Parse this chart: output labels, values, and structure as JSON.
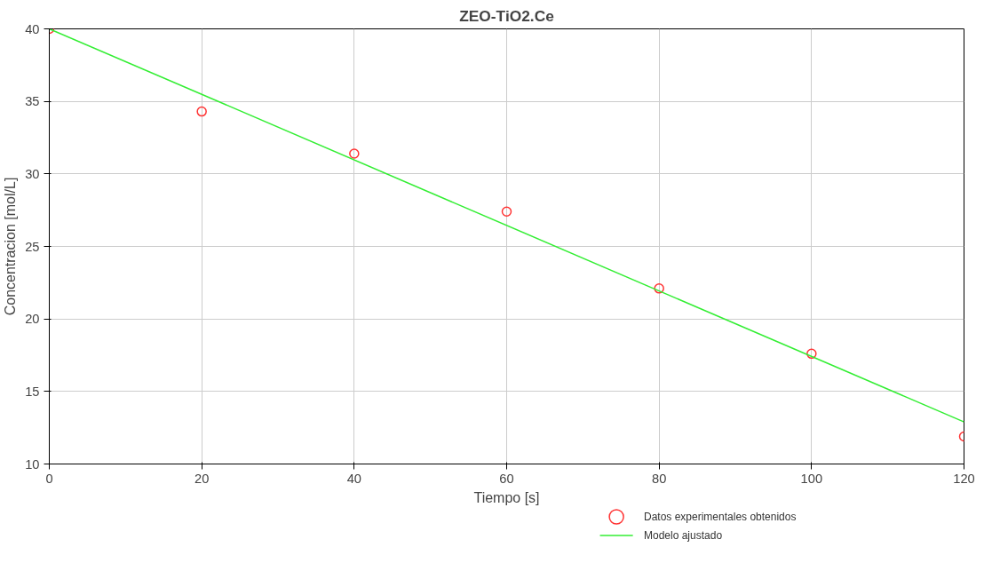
{
  "chart_data": {
    "type": "scatter",
    "title": "ZEO-TiO2.Ce",
    "xlabel": "Tiempo [s]",
    "ylabel": "Concentracion [mol/L]",
    "series": [
      {
        "name": "Datos experimentales obtenidos",
        "color": "#ff3333",
        "marker": "circle",
        "x": [
          0,
          20,
          40,
          60,
          80,
          100,
          120
        ],
        "values": [
          40,
          34.3,
          31.4,
          27.4,
          22.1,
          17.6,
          11.9
        ]
      },
      {
        "name": "Modelo ajustado",
        "type": "line",
        "color": "#33ee33",
        "marker": "none",
        "x": [
          0,
          120
        ],
        "values": [
          40,
          12.9
        ]
      }
    ],
    "xlim": [
      0,
      120
    ],
    "ylim": [
      10,
      40
    ],
    "xticks": [
      0,
      20,
      40,
      60,
      80,
      100,
      120
    ],
    "yticks": [
      10,
      15,
      20,
      25,
      30,
      35,
      40
    ],
    "grid": true,
    "legend": "bottom right"
  }
}
